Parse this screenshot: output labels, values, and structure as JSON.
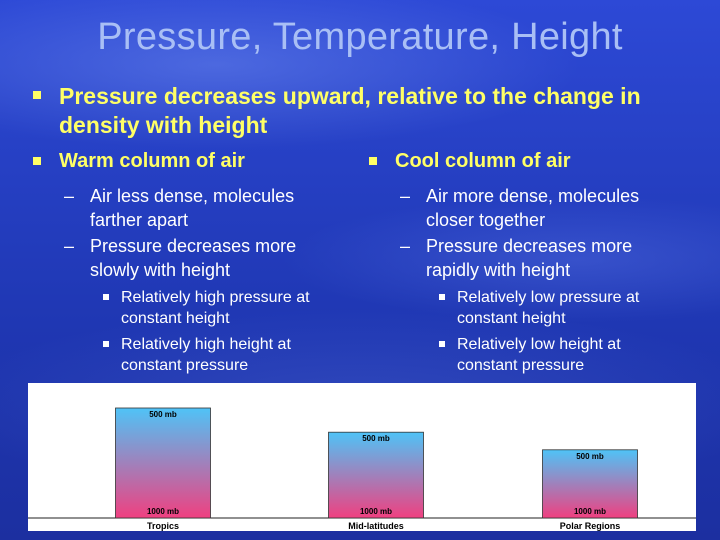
{
  "slide": {
    "title": "Pressure, Temperature, Height",
    "main_bullet": "Pressure decreases upward, relative to the change in density with height",
    "columns": [
      {
        "heading": "Warm column of air",
        "points": [
          "Air less dense, molecules farther apart",
          "Pressure decreases more slowly with height"
        ],
        "subpoints": [
          "Relatively high pressure at constant height",
          "Relatively high height at constant pressure"
        ]
      },
      {
        "heading": "Cool column of air",
        "points": [
          "Air more dense, molecules closer together",
          "Pressure decreases more rapidly with height"
        ],
        "subpoints": [
          "Relatively low pressure at constant height",
          "Relatively low height at constant pressure"
        ]
      }
    ],
    "dash_symbol": "–"
  },
  "colors": {
    "title": "#a9bff5",
    "bullet": "#ffff66",
    "text": "#ffffff",
    "column_top": "#4fc3f7",
    "column_bottom": "#f04080"
  },
  "chart_data": {
    "type": "bar",
    "categories": [
      "Tropics",
      "Mid-latitudes",
      "Polar Regions"
    ],
    "top_labels": [
      "500 mb",
      "500 mb",
      "500 mb"
    ],
    "bottom_labels": [
      "1000 mb",
      "1000 mb",
      "1000 mb"
    ],
    "values": [
      1.0,
      0.78,
      0.62
    ]
  }
}
